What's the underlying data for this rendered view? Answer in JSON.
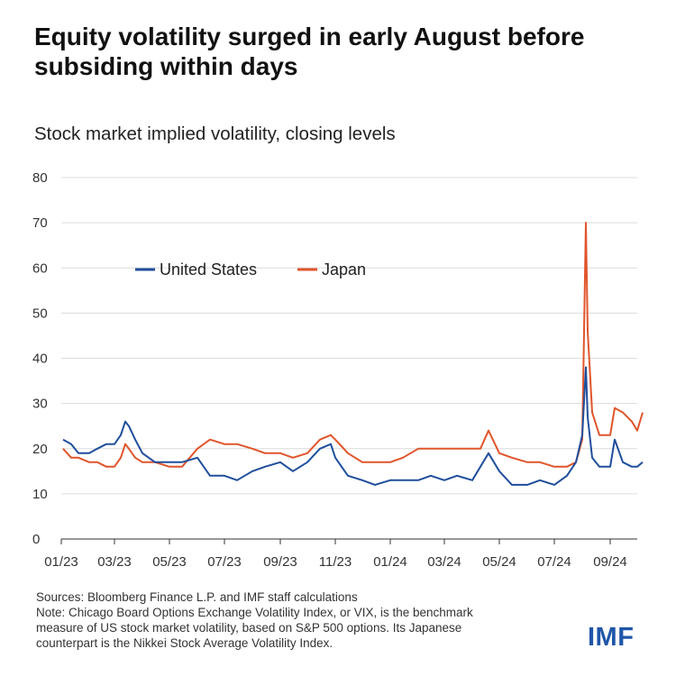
{
  "title": "Equity volatility surged in early August before subsiding within days",
  "subtitle": "Stock market implied volatility, closing levels",
  "footer": {
    "sources": "Sources: Bloomberg Finance L.P. and IMF staff calculations",
    "note_line1": "Note: Chicago Board Options Exchange Volatility Index, or VIX, is the benchmark",
    "note_line2": "measure of US stock market volatility, based on S&P 500 options. Its Japanese",
    "note_line3": "counterpart is the Nikkei Stock Average Volatility Index."
  },
  "logo": "IMF",
  "chart_data": {
    "type": "line",
    "title": "Stock market implied volatility, closing levels",
    "xlabel": "",
    "ylabel": "",
    "ylim": [
      0,
      80
    ],
    "yticks": [
      0,
      10,
      20,
      30,
      40,
      50,
      60,
      70,
      80
    ],
    "xlim": [
      "2023-01",
      "2024-10"
    ],
    "xticks": [
      "01/23",
      "03/23",
      "05/23",
      "07/23",
      "09/23",
      "11/23",
      "01/24",
      "03/24",
      "05/24",
      "07/24",
      "09/24"
    ],
    "grid": "horizontal",
    "legend_position": "top-left",
    "series": [
      {
        "name": "United States",
        "color": "#1f4e9c",
        "x": [
          "2023-01-03",
          "2023-01-12",
          "2023-01-20",
          "2023-02-01",
          "2023-02-10",
          "2023-02-20",
          "2023-03-01",
          "2023-03-08",
          "2023-03-13",
          "2023-03-17",
          "2023-03-24",
          "2023-04-01",
          "2023-04-15",
          "2023-05-01",
          "2023-05-15",
          "2023-06-01",
          "2023-06-15",
          "2023-07-01",
          "2023-07-15",
          "2023-08-01",
          "2023-08-15",
          "2023-09-01",
          "2023-09-15",
          "2023-10-01",
          "2023-10-15",
          "2023-10-27",
          "2023-11-01",
          "2023-11-15",
          "2023-12-01",
          "2023-12-15",
          "2024-01-01",
          "2024-01-15",
          "2024-02-01",
          "2024-02-15",
          "2024-03-01",
          "2024-03-15",
          "2024-04-01",
          "2024-04-10",
          "2024-04-19",
          "2024-05-01",
          "2024-05-15",
          "2024-06-01",
          "2024-06-15",
          "2024-07-01",
          "2024-07-15",
          "2024-07-25",
          "2024-08-01",
          "2024-08-05",
          "2024-08-07",
          "2024-08-12",
          "2024-08-20",
          "2024-09-01",
          "2024-09-06",
          "2024-09-15",
          "2024-09-25",
          "2024-10-01",
          "2024-10-07"
        ],
        "y": [
          22,
          21,
          19,
          19,
          20,
          21,
          21,
          23,
          26,
          25,
          22,
          19,
          17,
          17,
          17,
          18,
          14,
          14,
          13,
          15,
          16,
          17,
          15,
          17,
          20,
          21,
          18,
          14,
          13,
          12,
          13,
          13,
          13,
          14,
          13,
          14,
          13,
          16,
          19,
          15,
          12,
          12,
          13,
          12,
          14,
          17,
          23,
          38,
          27,
          18,
          16,
          16,
          22,
          17,
          16,
          16,
          17
        ]
      },
      {
        "name": "Japan",
        "color": "#e0552b",
        "x": [
          "2023-01-03",
          "2023-01-12",
          "2023-01-20",
          "2023-02-01",
          "2023-02-10",
          "2023-02-20",
          "2023-03-01",
          "2023-03-08",
          "2023-03-13",
          "2023-03-17",
          "2023-03-24",
          "2023-04-01",
          "2023-04-15",
          "2023-05-01",
          "2023-05-15",
          "2023-06-01",
          "2023-06-15",
          "2023-07-01",
          "2023-07-15",
          "2023-08-01",
          "2023-08-15",
          "2023-09-01",
          "2023-09-15",
          "2023-10-01",
          "2023-10-15",
          "2023-10-27",
          "2023-11-01",
          "2023-11-15",
          "2023-12-01",
          "2023-12-15",
          "2024-01-01",
          "2024-01-15",
          "2024-02-01",
          "2024-02-15",
          "2024-03-01",
          "2024-03-15",
          "2024-04-01",
          "2024-04-10",
          "2024-04-19",
          "2024-05-01",
          "2024-05-15",
          "2024-06-01",
          "2024-06-15",
          "2024-07-01",
          "2024-07-15",
          "2024-07-25",
          "2024-08-01",
          "2024-08-05",
          "2024-08-07",
          "2024-08-12",
          "2024-08-20",
          "2024-09-01",
          "2024-09-06",
          "2024-09-15",
          "2024-09-25",
          "2024-10-01",
          "2024-10-07"
        ],
        "y": [
          20,
          18,
          18,
          17,
          17,
          16,
          16,
          18,
          21,
          20,
          18,
          17,
          17,
          16,
          16,
          20,
          22,
          21,
          21,
          20,
          19,
          19,
          18,
          19,
          22,
          23,
          22,
          19,
          17,
          17,
          17,
          18,
          20,
          20,
          20,
          20,
          20,
          20,
          24,
          19,
          18,
          17,
          17,
          16,
          16,
          17,
          22,
          70,
          46,
          28,
          23,
          23,
          29,
          28,
          26,
          24,
          28
        ]
      }
    ]
  }
}
